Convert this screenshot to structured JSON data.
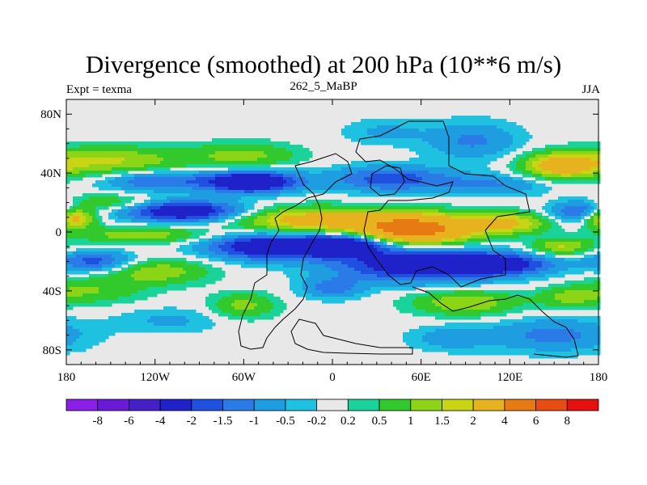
{
  "chart_data": {
    "type": "heatmap",
    "title": "Divergence (smoothed) at 200 hPa (10**6 m/s)",
    "left_label": "Expt = texma",
    "center_label": "262_5_MaBP",
    "right_label": "JJA",
    "x_ticks": [
      "180",
      "120W",
      "60W",
      "0",
      "60E",
      "120E",
      "180"
    ],
    "x_tick_values": [
      -180,
      -120,
      -60,
      0,
      60,
      120,
      180
    ],
    "y_ticks": [
      "80N",
      "40N",
      "0",
      "40S",
      "80S"
    ],
    "y_tick_values": [
      80,
      40,
      0,
      -40,
      -80
    ],
    "xlim": [
      -180,
      180
    ],
    "ylim": [
      -90,
      90
    ],
    "colorbar": {
      "labels": [
        "-8",
        "-6",
        "-4",
        "-2",
        "-1.5",
        "-1",
        "-0.5",
        "-0.2",
        "0.2",
        "0.5",
        "1",
        "1.5",
        "2",
        "4",
        "6",
        "8"
      ],
      "levels": [
        -8,
        -6,
        -4,
        -2,
        -1.5,
        -1,
        -0.5,
        -0.2,
        0.2,
        0.5,
        1,
        1.5,
        2,
        4,
        6,
        8
      ],
      "colors": [
        "#8a1fe8",
        "#6a1ad6",
        "#4520c9",
        "#1e22c8",
        "#1f50e0",
        "#2a7ae8",
        "#1e9ee0",
        "#1ec2e0",
        "#e8e8e8",
        "#19d39a",
        "#31c92c",
        "#8cd516",
        "#c8d414",
        "#e8b21e",
        "#e87a14",
        "#e84c10",
        "#e80f10"
      ]
    },
    "field": [
      {
        "lon": -150,
        "lat": 48,
        "amp": 1.6,
        "sx": 35,
        "sy": 7
      },
      {
        "lon": -60,
        "lat": 52,
        "amp": 1.2,
        "sx": 25,
        "sy": 6
      },
      {
        "lon": 155,
        "lat": 45,
        "amp": 2.6,
        "sx": 18,
        "sy": 6
      },
      {
        "lon": 95,
        "lat": 62,
        "amp": -1.1,
        "sx": 22,
        "sy": 9
      },
      {
        "lon": 35,
        "lat": 68,
        "amp": -0.6,
        "sx": 20,
        "sy": 6
      },
      {
        "lon": -120,
        "lat": 35,
        "amp": -1.6,
        "sx": 25,
        "sy": 5
      },
      {
        "lon": -55,
        "lat": 34,
        "amp": -3.5,
        "sx": 22,
        "sy": 5
      },
      {
        "lon": 40,
        "lat": 36,
        "amp": -1.8,
        "sx": 30,
        "sy": 6
      },
      {
        "lon": 110,
        "lat": 32,
        "amp": -1.0,
        "sx": 25,
        "sy": 5
      },
      {
        "lon": -100,
        "lat": 14,
        "amp": -3.0,
        "sx": 28,
        "sy": 5
      },
      {
        "lon": 170,
        "lat": 14,
        "amp": -1.8,
        "sx": 15,
        "sy": 5
      },
      {
        "lon": -175,
        "lat": 10,
        "amp": 2.8,
        "sx": 10,
        "sy": 5
      },
      {
        "lon": -150,
        "lat": 20,
        "amp": 1.0,
        "sx": 20,
        "sy": 4
      },
      {
        "lon": -15,
        "lat": 8,
        "amp": 2.5,
        "sx": 35,
        "sy": 6
      },
      {
        "lon": 55,
        "lat": 2,
        "amp": 5.2,
        "sx": 28,
        "sy": 7
      },
      {
        "lon": 120,
        "lat": 6,
        "amp": 2.0,
        "sx": 18,
        "sy": 5
      },
      {
        "lon": -130,
        "lat": -2,
        "amp": 1.4,
        "sx": 30,
        "sy": 4
      },
      {
        "lon": -40,
        "lat": -10,
        "amp": -3.2,
        "sx": 30,
        "sy": 6
      },
      {
        "lon": 10,
        "lat": -8,
        "amp": -3.0,
        "sx": 20,
        "sy": 5
      },
      {
        "lon": 60,
        "lat": -22,
        "amp": -3.0,
        "sx": 40,
        "sy": 8
      },
      {
        "lon": 115,
        "lat": -22,
        "amp": -2.0,
        "sx": 25,
        "sy": 5
      },
      {
        "lon": 155,
        "lat": -10,
        "amp": 1.6,
        "sx": 15,
        "sy": 4
      },
      {
        "lon": -160,
        "lat": -20,
        "amp": -1.8,
        "sx": 18,
        "sy": 5
      },
      {
        "lon": -120,
        "lat": -27,
        "amp": 1.4,
        "sx": 25,
        "sy": 6
      },
      {
        "lon": -165,
        "lat": -40,
        "amp": 1.0,
        "sx": 25,
        "sy": 6
      },
      {
        "lon": -60,
        "lat": -50,
        "amp": 1.2,
        "sx": 15,
        "sy": 6
      },
      {
        "lon": 90,
        "lat": -48,
        "amp": 1.5,
        "sx": 25,
        "sy": 6
      },
      {
        "lon": 160,
        "lat": -45,
        "amp": 1.0,
        "sx": 15,
        "sy": 5
      },
      {
        "lon": 150,
        "lat": -70,
        "amp": -1.2,
        "sx": 30,
        "sy": 8
      },
      {
        "lon": 80,
        "lat": -72,
        "amp": -0.8,
        "sx": 20,
        "sy": 6
      },
      {
        "lon": -110,
        "lat": -60,
        "amp": -0.6,
        "sx": 25,
        "sy": 6
      },
      {
        "lon": 0,
        "lat": -38,
        "amp": -1.2,
        "sx": 15,
        "sy": 5
      }
    ]
  }
}
